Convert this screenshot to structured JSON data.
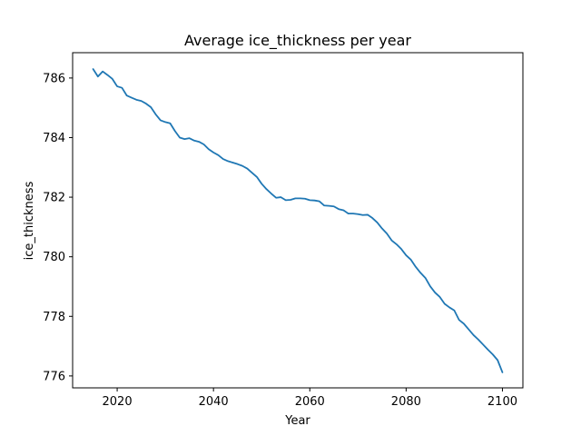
{
  "chart_data": {
    "type": "line",
    "title": "Average ice_thickness per year",
    "xlabel": "Year",
    "ylabel": "ice_thickness",
    "xlim": [
      2010.75,
      2104.25
    ],
    "ylim": [
      775.6,
      786.85
    ],
    "xticks": [
      2020,
      2040,
      2060,
      2080,
      2100
    ],
    "yticks": [
      776,
      778,
      780,
      782,
      784,
      786
    ],
    "grid": false,
    "legend": "none",
    "colors": {
      "series": "#1f77b4"
    },
    "series": [
      {
        "x": [
          2015,
          2016,
          2017,
          2018,
          2019,
          2020,
          2021,
          2022,
          2023,
          2024,
          2025,
          2026,
          2027,
          2028,
          2029,
          2030,
          2031,
          2032,
          2033,
          2034,
          2035,
          2036,
          2037,
          2038,
          2039,
          2040,
          2041,
          2042,
          2043,
          2044,
          2045,
          2046,
          2047,
          2048,
          2049,
          2050,
          2051,
          2052,
          2053,
          2054,
          2055,
          2056,
          2057,
          2058,
          2059,
          2060,
          2061,
          2062,
          2063,
          2064,
          2065,
          2066,
          2067,
          2068,
          2069,
          2070,
          2071,
          2072,
          2073,
          2074,
          2075,
          2076,
          2077,
          2078,
          2079,
          2080,
          2081,
          2082,
          2083,
          2084,
          2085,
          2086,
          2087,
          2088,
          2089,
          2090,
          2091,
          2092,
          2093,
          2094,
          2095,
          2096,
          2097,
          2098,
          2099,
          2100
        ],
        "y": [
          786.3,
          786.05,
          786.22,
          786.1,
          785.97,
          785.72,
          785.67,
          785.41,
          785.34,
          785.27,
          785.23,
          785.14,
          785.02,
          784.78,
          784.58,
          784.52,
          784.48,
          784.22,
          784.0,
          783.95,
          783.98,
          783.9,
          783.86,
          783.77,
          783.61,
          783.5,
          783.41,
          783.28,
          783.21,
          783.16,
          783.11,
          783.05,
          782.96,
          782.82,
          782.68,
          782.45,
          782.27,
          782.12,
          781.98,
          782.0,
          781.9,
          781.91,
          781.96,
          781.96,
          781.95,
          781.9,
          781.89,
          781.86,
          781.72,
          781.71,
          781.69,
          781.6,
          781.56,
          781.45,
          781.45,
          781.43,
          781.4,
          781.41,
          781.3,
          781.15,
          780.95,
          780.78,
          780.55,
          780.42,
          780.26,
          780.05,
          779.9,
          779.66,
          779.46,
          779.29,
          779.01,
          778.8,
          778.65,
          778.42,
          778.3,
          778.2,
          777.88,
          777.75,
          777.56,
          777.37,
          777.22,
          777.05,
          776.88,
          776.72,
          776.53,
          776.12
        ]
      }
    ]
  }
}
